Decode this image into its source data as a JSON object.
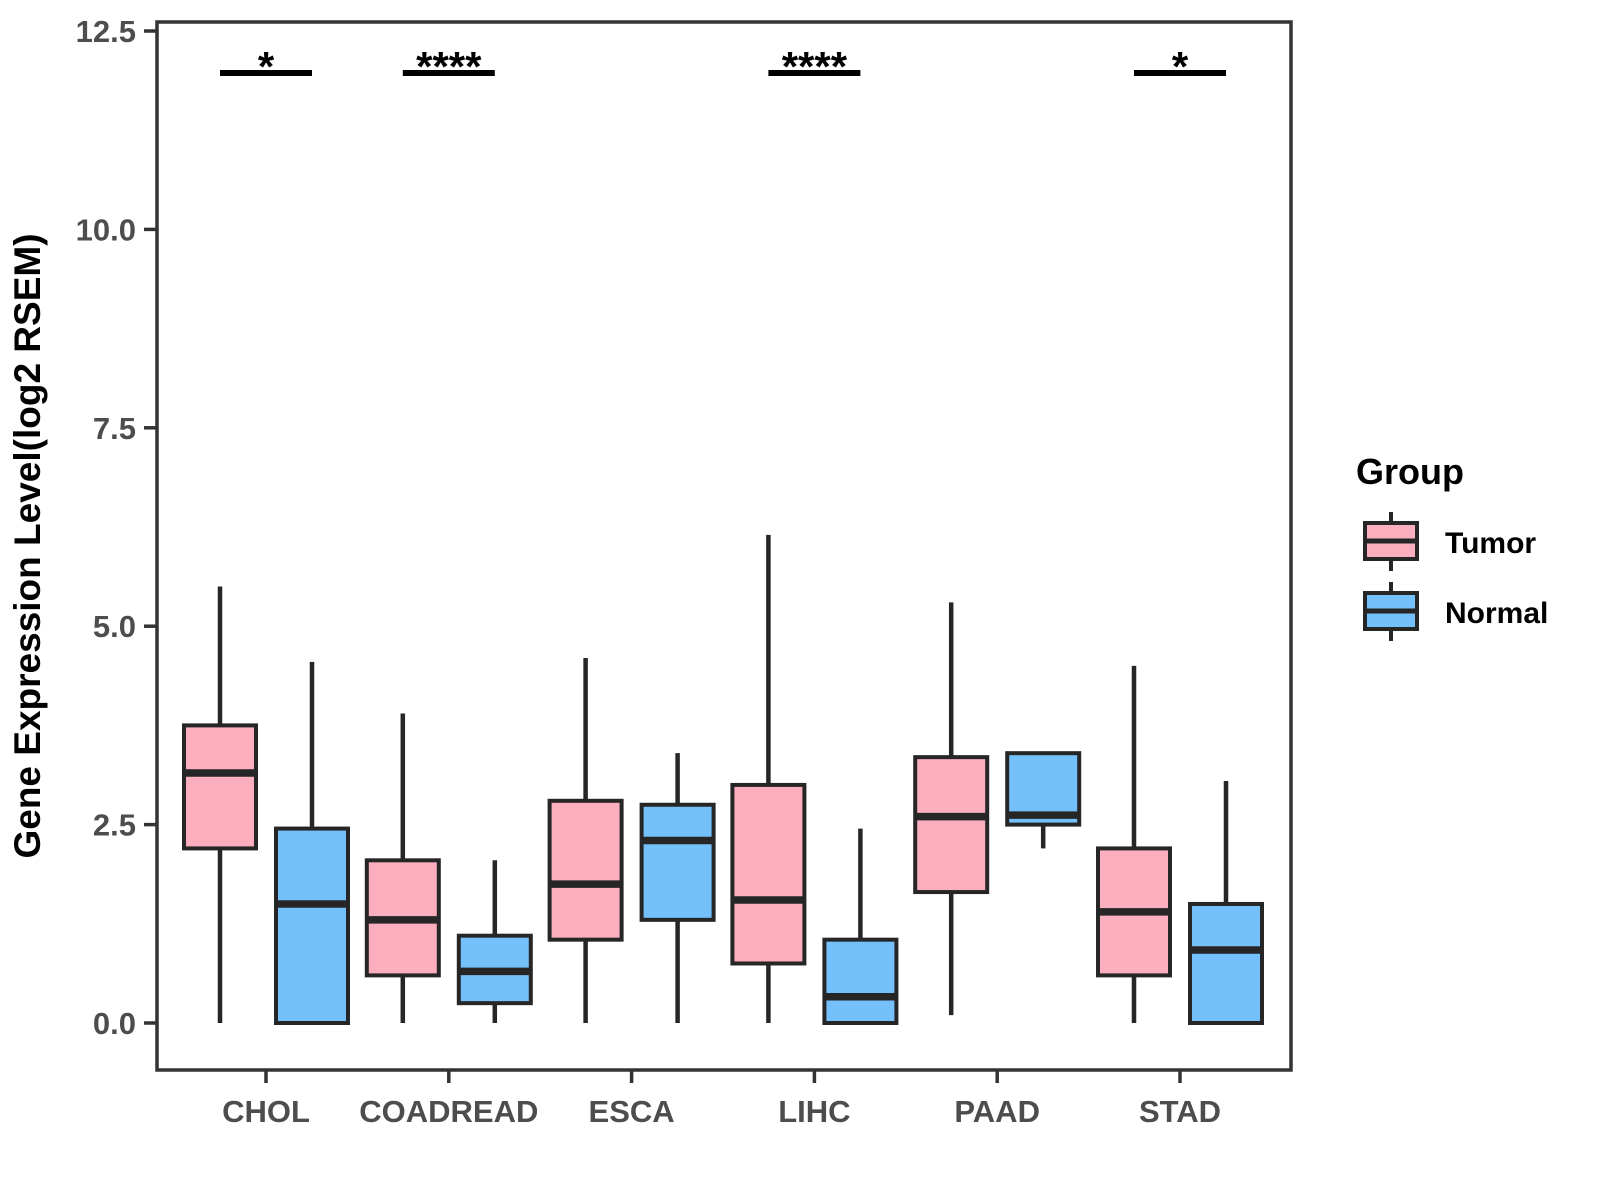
{
  "chart_data": {
    "type": "boxplot",
    "title": "",
    "ylabel": "Gene Expression Level(log2 RSEM)",
    "categories": [
      "CHOL",
      "COADREAD",
      "ESCA",
      "LIHC",
      "PAAD",
      "STAD"
    ],
    "ylim": [
      0,
      12.5
    ],
    "grid": "off",
    "y_ticks": [
      {
        "value": 0.0,
        "label": "0.0"
      },
      {
        "value": 2.5,
        "label": "2.5"
      },
      {
        "value": 5.0,
        "label": "5.0"
      },
      {
        "value": 7.5,
        "label": "7.5"
      },
      {
        "value": 10.0,
        "label": "10.0"
      },
      {
        "value": 12.5,
        "label": "12.5"
      }
    ],
    "legend": {
      "title": "Group",
      "position": "right",
      "entries": [
        {
          "name": "Tumor",
          "color": "#FBAEBE"
        },
        {
          "name": "Normal",
          "color": "#74C0FA"
        }
      ]
    },
    "series": [
      {
        "name": "Tumor",
        "color": "#FBAEBE",
        "boxes": [
          {
            "category": "CHOL",
            "min": 0.0,
            "q1": 2.2,
            "median": 3.15,
            "q3": 3.75,
            "max": 5.5
          },
          {
            "category": "COADREAD",
            "min": 0.0,
            "q1": 0.6,
            "median": 1.3,
            "q3": 2.05,
            "max": 3.9
          },
          {
            "category": "ESCA",
            "min": 0.0,
            "q1": 1.05,
            "median": 1.75,
            "q3": 2.8,
            "max": 4.6
          },
          {
            "category": "LIHC",
            "min": 0.0,
            "q1": 0.75,
            "median": 1.55,
            "q3": 3.0,
            "max": 6.15
          },
          {
            "category": "PAAD",
            "min": 0.1,
            "q1": 1.65,
            "median": 2.6,
            "q3": 3.35,
            "max": 5.3
          },
          {
            "category": "STAD",
            "min": 0.0,
            "q1": 0.6,
            "median": 1.4,
            "q3": 2.2,
            "max": 4.5
          }
        ]
      },
      {
        "name": "Normal",
        "color": "#74C0FA",
        "boxes": [
          {
            "category": "CHOL",
            "min": 0.0,
            "q1": 0.0,
            "median": 1.5,
            "q3": 2.45,
            "max": 4.55
          },
          {
            "category": "COADREAD",
            "min": 0.0,
            "q1": 0.25,
            "median": 0.65,
            "q3": 1.1,
            "max": 2.05
          },
          {
            "category": "ESCA",
            "min": 0.0,
            "q1": 1.3,
            "median": 2.3,
            "q3": 2.75,
            "max": 3.4
          },
          {
            "category": "LIHC",
            "min": 0.0,
            "q1": 0.0,
            "median": 0.33,
            "q3": 1.05,
            "max": 2.45
          },
          {
            "category": "PAAD",
            "min": 2.2,
            "q1": 2.5,
            "median": 2.62,
            "q3": 3.4,
            "max": 3.4
          },
          {
            "category": "STAD",
            "min": 0.0,
            "q1": 0.0,
            "median": 0.92,
            "q3": 1.5,
            "max": 3.05
          }
        ]
      }
    ],
    "significance_markers": [
      {
        "category": "CHOL",
        "label": "*"
      },
      {
        "category": "COADREAD",
        "label": "****"
      },
      {
        "category": "LIHC",
        "label": "****"
      },
      {
        "category": "STAD",
        "label": "*"
      }
    ],
    "style_colors": {
      "box_outline": "#262626",
      "panel_border": "#333333",
      "axis_text": "#4d4d4d",
      "significance": "#000000"
    }
  }
}
